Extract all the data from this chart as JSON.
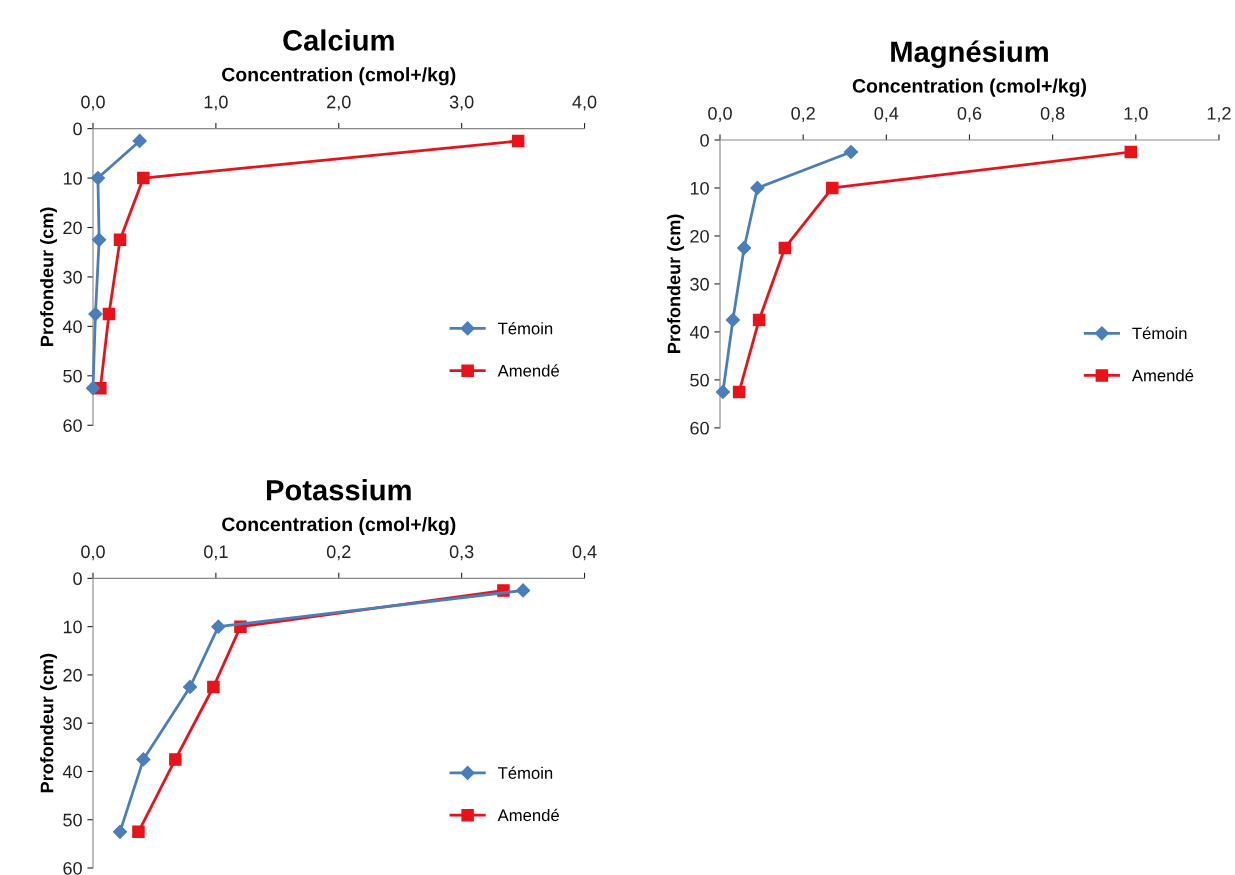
{
  "chart_data": [
    {
      "type": "line",
      "title": "Calcium",
      "xlabel": "Concentration (cmol+/kg)",
      "ylabel": "Profondeur (cm)",
      "xlim": [
        0,
        4
      ],
      "xticks": [
        {
          "value": 0,
          "label": "0,0"
        },
        {
          "value": 1,
          "label": "1,0"
        },
        {
          "value": 2,
          "label": "2,0"
        },
        {
          "value": 3,
          "label": "3,0"
        },
        {
          "value": 4,
          "label": "4,0"
        }
      ],
      "ylim": [
        60,
        0
      ],
      "yticks": [
        0,
        10,
        20,
        30,
        40,
        50,
        60
      ],
      "grid": false,
      "legend": "right",
      "series": [
        {
          "name": "Témoin",
          "color": "#4a7ebb",
          "marker": "diamond",
          "x": [
            0.38,
            0.04,
            0.05,
            0.02,
            0.0
          ],
          "values": [
            2.5,
            10,
            22.5,
            37.5,
            52.5
          ]
        },
        {
          "name": "Amendé",
          "color": "#e8131a",
          "marker": "square",
          "x": [
            3.46,
            0.41,
            0.22,
            0.13,
            0.06
          ],
          "values": [
            2.5,
            10,
            22.5,
            37.5,
            52.5
          ]
        }
      ]
    },
    {
      "type": "line",
      "title": "Magnésium",
      "xlabel": "Concentration (cmol+/kg)",
      "ylabel": "Profondeur (cm)",
      "xlim": [
        0,
        1.2
      ],
      "xticks": [
        {
          "value": 0,
          "label": "0,0"
        },
        {
          "value": 0.2,
          "label": "0,2"
        },
        {
          "value": 0.4,
          "label": "0,4"
        },
        {
          "value": 0.6,
          "label": "0,6"
        },
        {
          "value": 0.8,
          "label": "0,8"
        },
        {
          "value": 1.0,
          "label": "1,0"
        },
        {
          "value": 1.2,
          "label": "1,2"
        }
      ],
      "ylim": [
        60,
        0
      ],
      "yticks": [
        0,
        10,
        20,
        30,
        40,
        50,
        60
      ],
      "grid": false,
      "legend": "right",
      "series": [
        {
          "name": "Témoin",
          "color": "#4a7ebb",
          "marker": "diamond",
          "x": [
            0.315,
            0.09,
            0.058,
            0.031,
            0.007
          ],
          "values": [
            2.5,
            10,
            22.5,
            37.5,
            52.5
          ]
        },
        {
          "name": "Amendé",
          "color": "#e8131a",
          "marker": "square",
          "x": [
            0.988,
            0.27,
            0.156,
            0.094,
            0.046
          ],
          "values": [
            2.5,
            10,
            22.5,
            37.5,
            52.5
          ]
        }
      ]
    },
    {
      "type": "line",
      "title": "Potassium",
      "xlabel": "Concentration (cmol+/kg)",
      "ylabel": "Profondeur (cm)",
      "xlim": [
        0,
        0.4
      ],
      "xticks": [
        {
          "value": 0,
          "label": "0,0"
        },
        {
          "value": 0.1,
          "label": "0,1"
        },
        {
          "value": 0.2,
          "label": "0,2"
        },
        {
          "value": 0.3,
          "label": "0,3"
        },
        {
          "value": 0.4,
          "label": "0,4"
        }
      ],
      "ylim": [
        60,
        0
      ],
      "yticks": [
        0,
        10,
        20,
        30,
        40,
        50,
        60
      ],
      "grid": false,
      "legend": "right",
      "series": [
        {
          "name": "Témoin",
          "color": "#4a7ebb",
          "marker": "diamond",
          "x": [
            0.35,
            0.102,
            0.079,
            0.041,
            0.022
          ],
          "values": [
            2.5,
            10,
            22.5,
            37.5,
            52.5
          ]
        },
        {
          "name": "Amendé",
          "color": "#e8131a",
          "marker": "square",
          "x": [
            0.334,
            0.12,
            0.098,
            0.067,
            0.037
          ],
          "values": [
            2.5,
            10,
            22.5,
            37.5,
            52.5
          ]
        }
      ]
    }
  ]
}
